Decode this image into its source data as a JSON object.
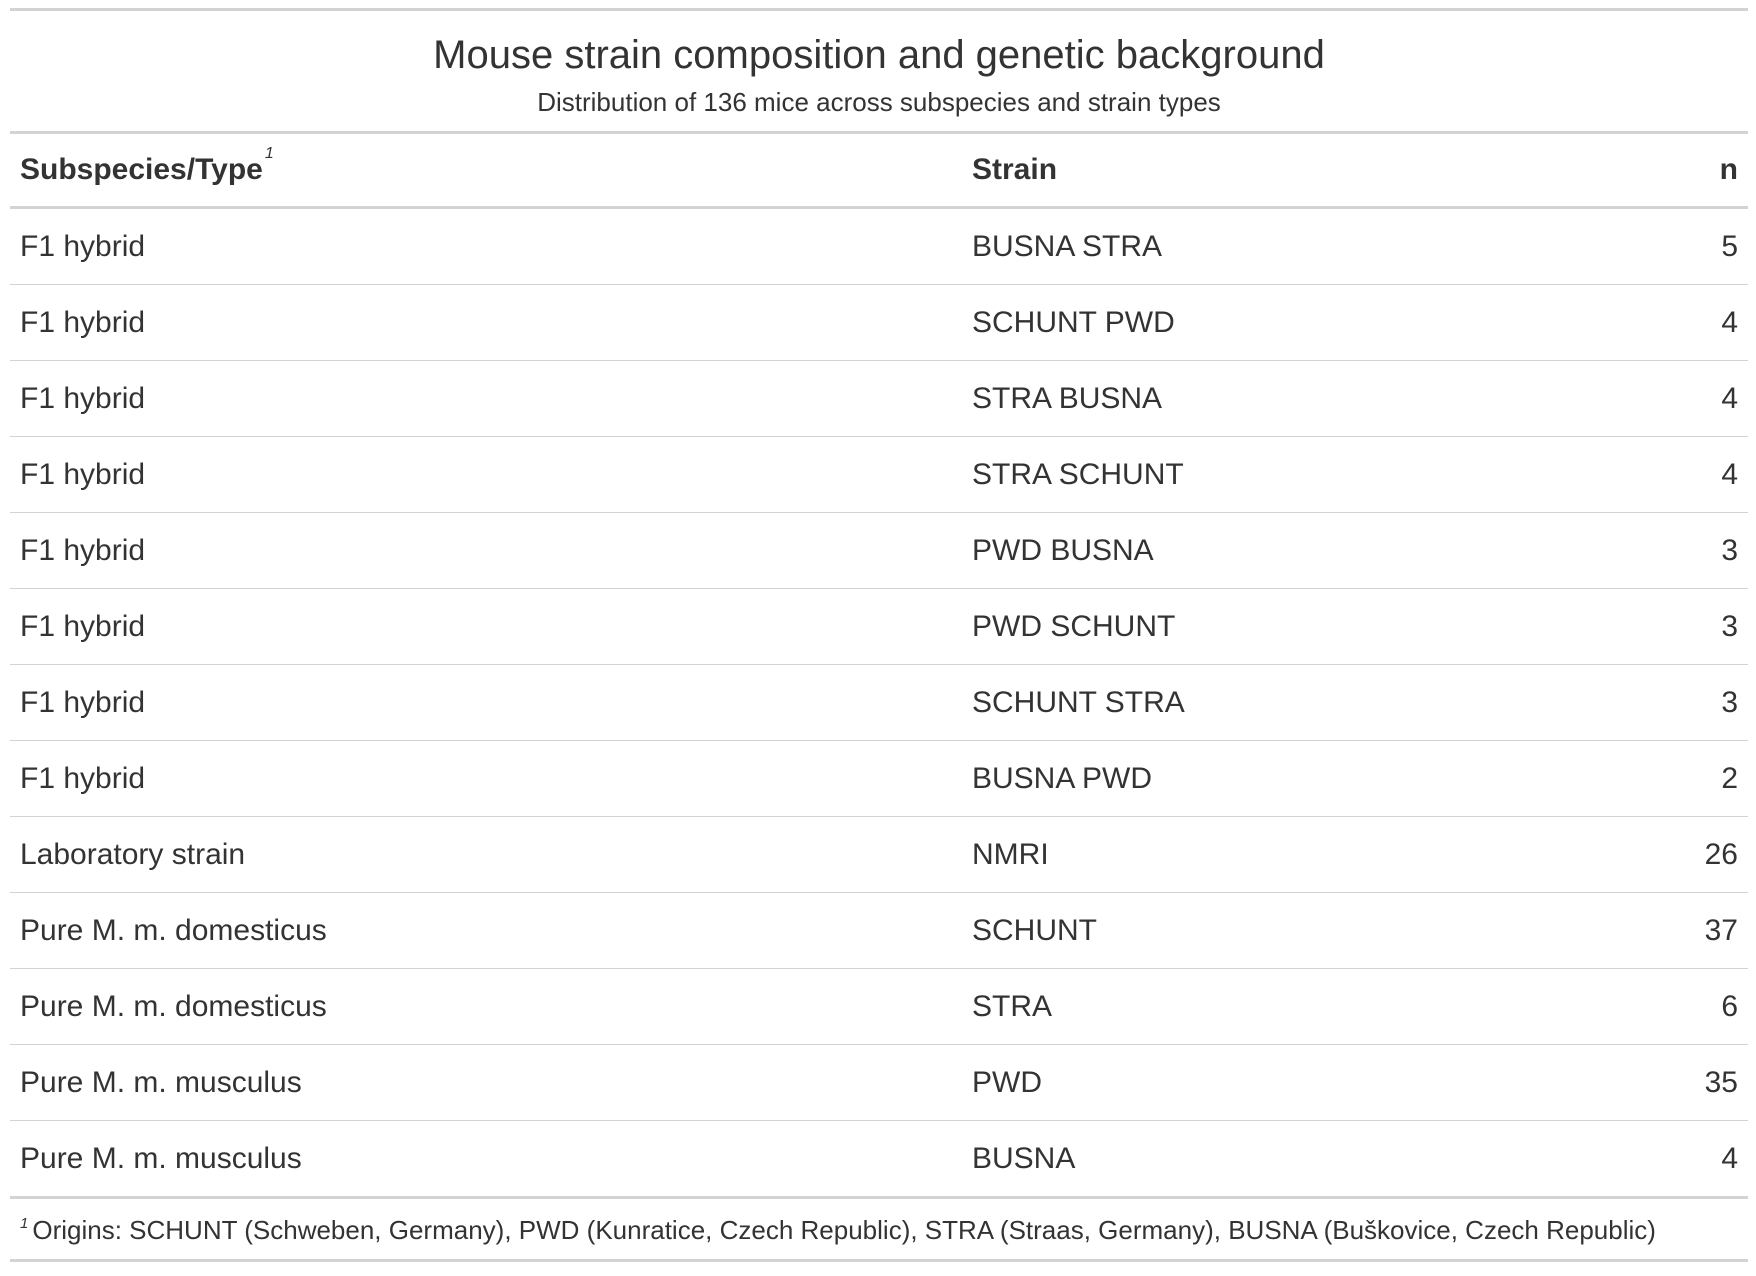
{
  "title": "Mouse strain composition and genetic background",
  "subtitle": "Distribution of 136 mice across subspecies and strain types",
  "columns": {
    "type": "Subspecies/Type",
    "type_footnote_mark": "1",
    "strain": "Strain",
    "n": "n"
  },
  "rows": [
    {
      "type": "F1 hybrid",
      "strain": "BUSNA STRA",
      "n": "5"
    },
    {
      "type": "F1 hybrid",
      "strain": "SCHUNT PWD",
      "n": "4"
    },
    {
      "type": "F1 hybrid",
      "strain": "STRA BUSNA",
      "n": "4"
    },
    {
      "type": "F1 hybrid",
      "strain": "STRA SCHUNT",
      "n": "4"
    },
    {
      "type": "F1 hybrid",
      "strain": "PWD BUSNA",
      "n": "3"
    },
    {
      "type": "F1 hybrid",
      "strain": "PWD SCHUNT",
      "n": "3"
    },
    {
      "type": "F1 hybrid",
      "strain": "SCHUNT STRA",
      "n": "3"
    },
    {
      "type": "F1 hybrid",
      "strain": "BUSNA PWD",
      "n": "2"
    },
    {
      "type": "Laboratory strain",
      "strain": "NMRI",
      "n": "26"
    },
    {
      "type": "Pure M. m. domesticus",
      "strain": "SCHUNT",
      "n": "37"
    },
    {
      "type": "Pure M. m. domesticus",
      "strain": "STRA",
      "n": "6"
    },
    {
      "type": "Pure M. m. musculus",
      "strain": "PWD",
      "n": "35"
    },
    {
      "type": "Pure M. m. musculus",
      "strain": "BUSNA",
      "n": "4"
    }
  ],
  "footnote": {
    "mark": "1",
    "text": "Origins: SCHUNT (Schweben, Germany), PWD (Kunratice, Czech Republic), STRA (Straas, Germany), BUSNA (Buškovice, Czech Republic)"
  }
}
